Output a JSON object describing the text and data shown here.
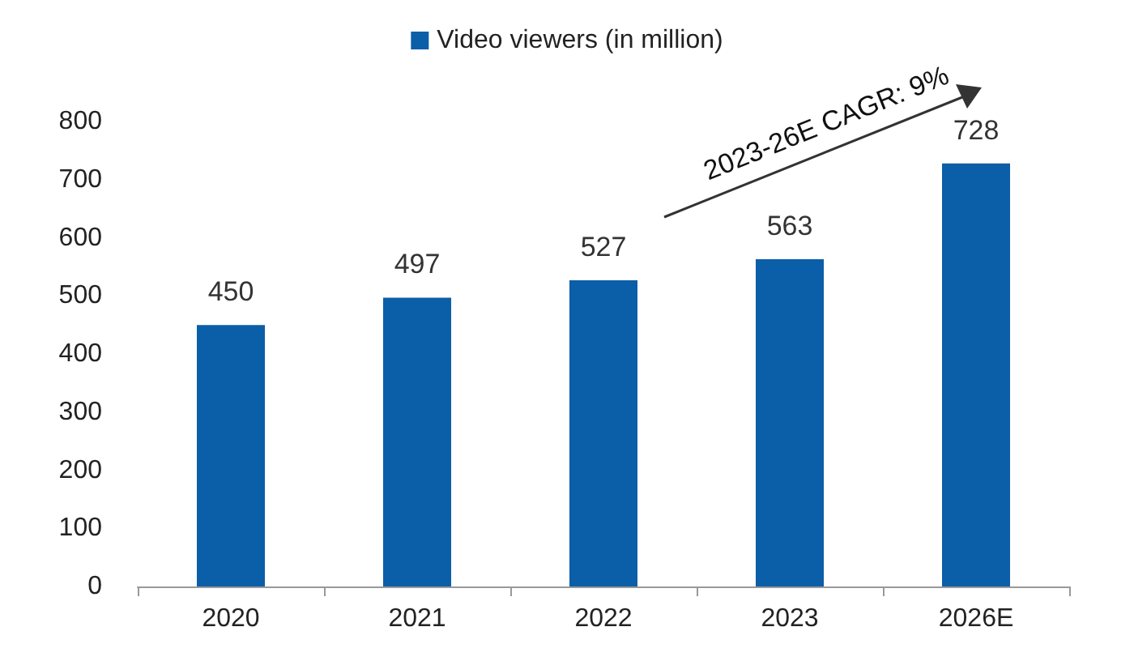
{
  "chart_data": {
    "type": "bar",
    "categories": [
      "2020",
      "2021",
      "2022",
      "2023",
      "2026E"
    ],
    "series": [
      {
        "name": "Video viewers (in million)",
        "color": "#0b5ea8",
        "values": [
          450,
          497,
          527,
          563,
          728
        ]
      }
    ],
    "ylim": [
      0,
      800
    ],
    "yticks": [
      0,
      100,
      200,
      300,
      400,
      500,
      600,
      700,
      800
    ],
    "grid": false,
    "legend": "top",
    "data_labels": true,
    "annotations": [
      "2023-26E CAGR: 9%"
    ]
  }
}
